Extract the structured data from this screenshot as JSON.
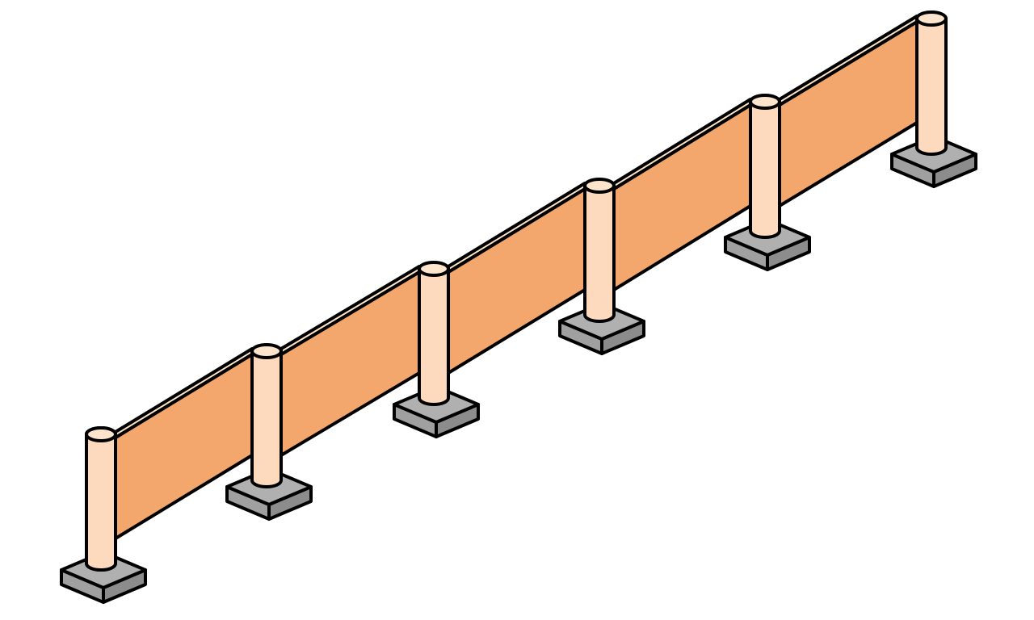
{
  "illustration": {
    "subject": "barrier-fence",
    "post_count": 6,
    "panel_count": 5
  },
  "colors": {
    "background": "#ffffff",
    "outline": "#000000",
    "panel_face": "#f4a76c",
    "panel_top": "#fde6cc",
    "post": "#fdd9bd",
    "post_top": "#fde4cc",
    "base_top": "#b0b0b0",
    "base_front": "#a0a0a0",
    "base_side": "#8c8c8c"
  }
}
